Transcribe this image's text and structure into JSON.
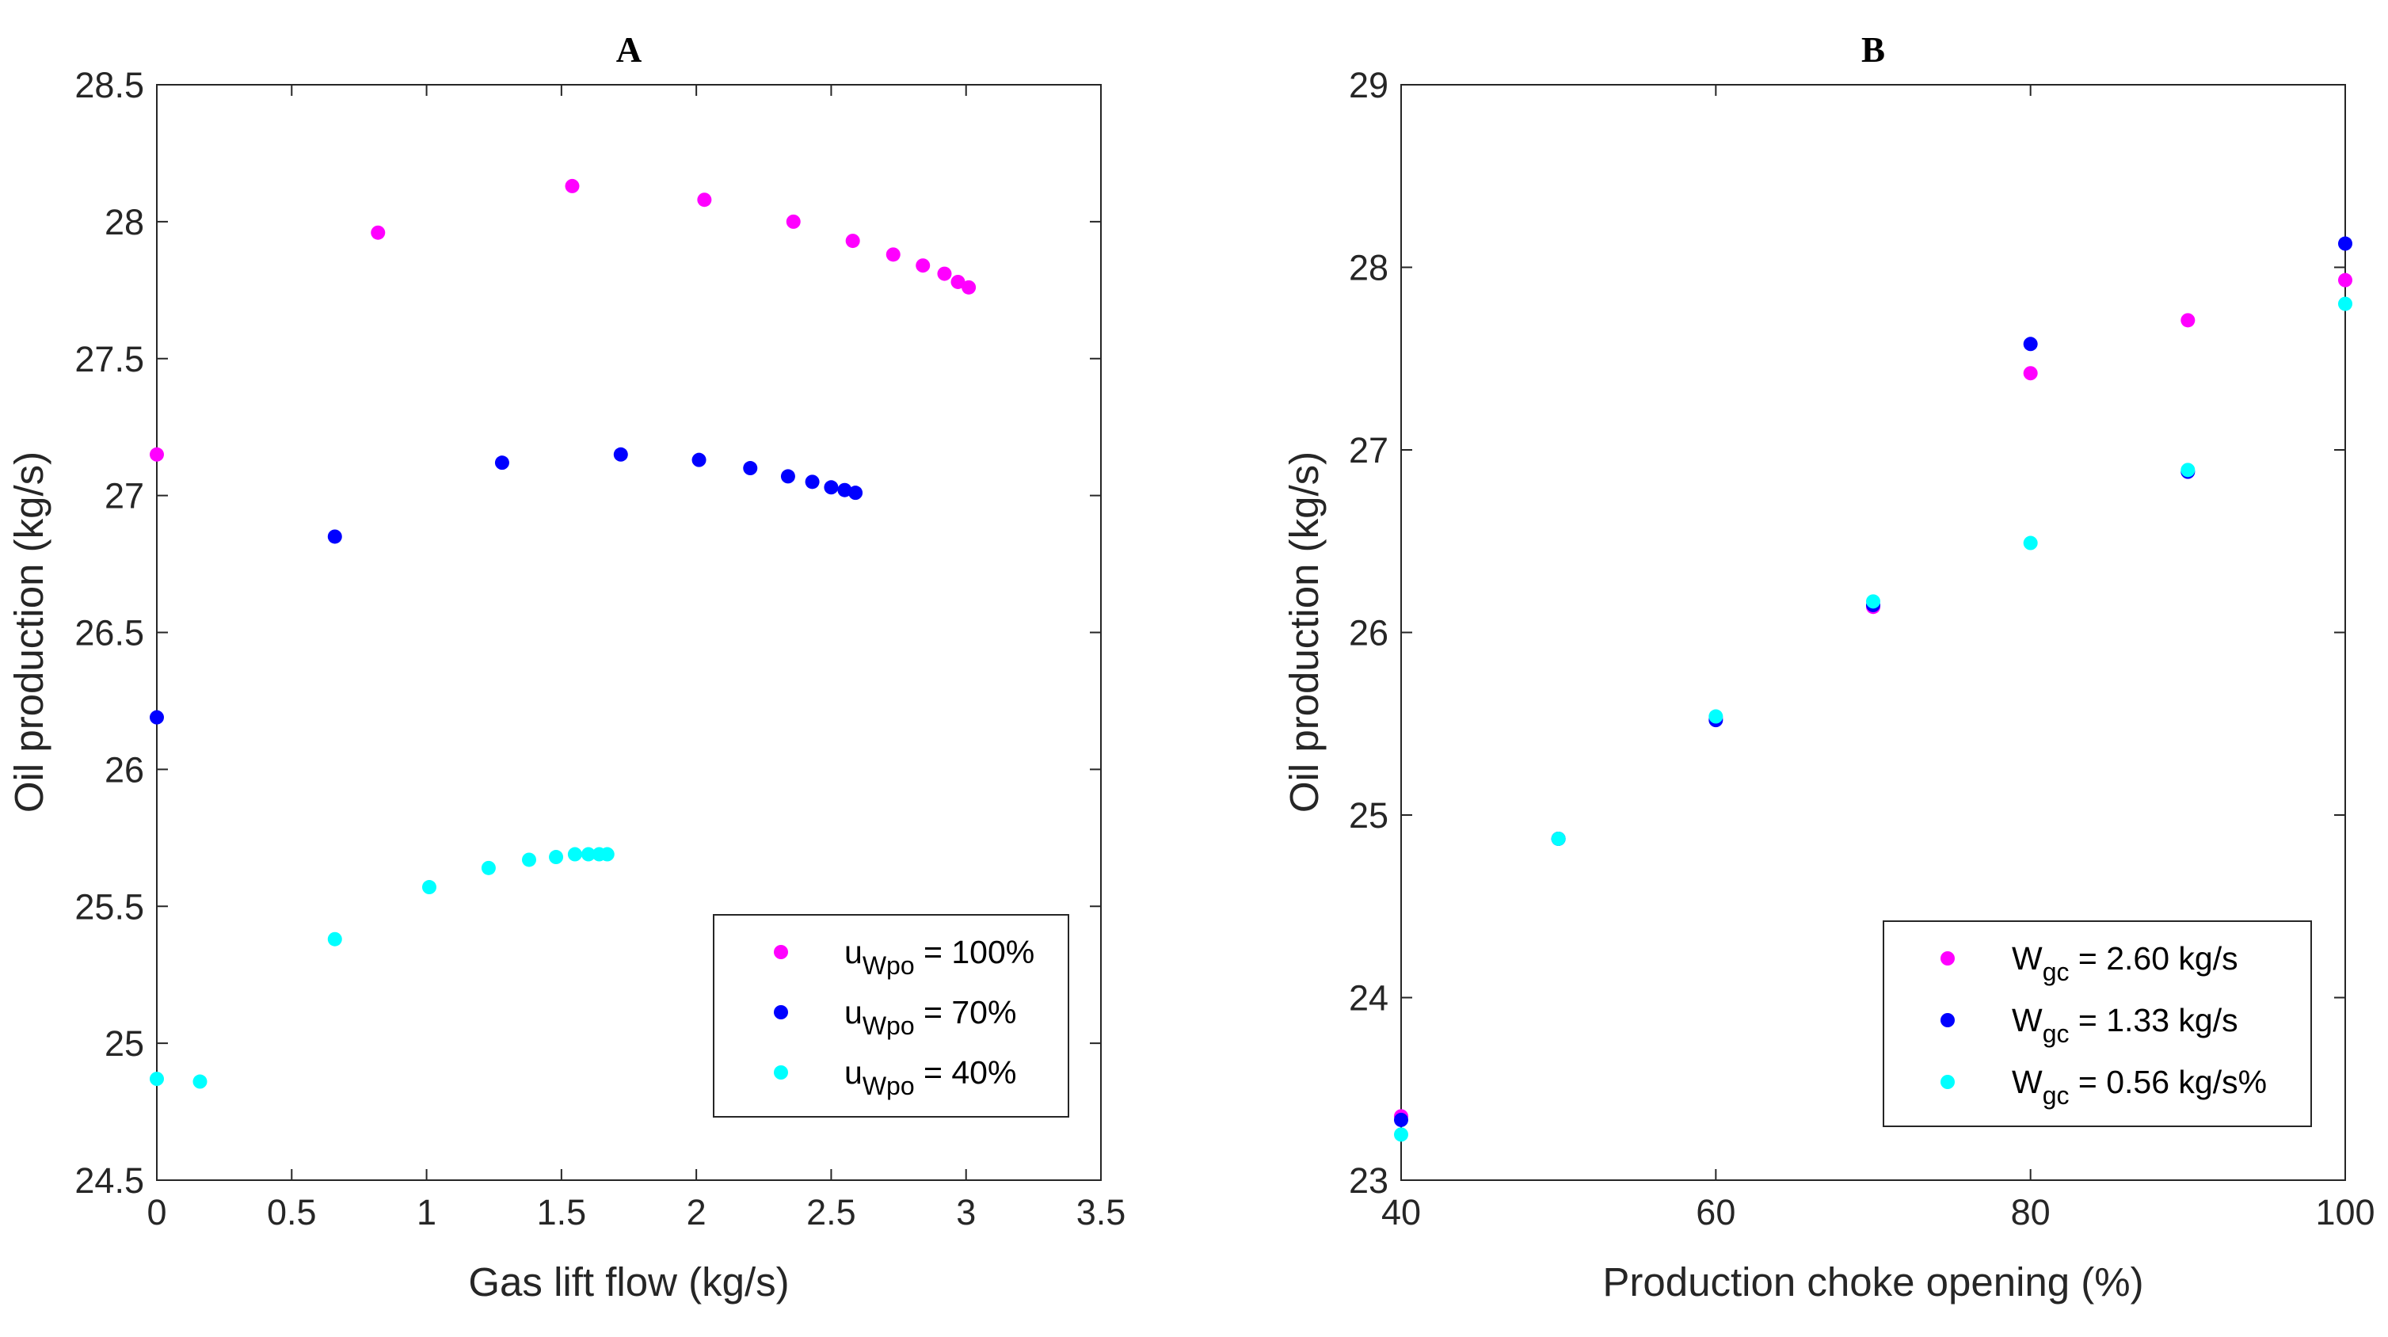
{
  "chart_data": [
    {
      "type": "scatter",
      "title": "A",
      "xlabel": "Gas lift flow (kg/s)",
      "ylabel": "Oil production (kg/s)",
      "xlim": [
        0,
        3.5
      ],
      "ylim": [
        24.5,
        28.5
      ],
      "xticks": [
        "0",
        "0.5",
        "1",
        "1.5",
        "2",
        "2.5",
        "3",
        "3.5"
      ],
      "xtick_values": [
        0,
        0.5,
        1,
        1.5,
        2,
        2.5,
        3,
        3.5
      ],
      "yticks": [
        "24.5",
        "25",
        "25.5",
        "26",
        "26.5",
        "27",
        "27.5",
        "28",
        "28.5"
      ],
      "ytick_values": [
        24.5,
        25,
        25.5,
        26,
        26.5,
        27,
        27.5,
        28,
        28.5
      ],
      "legend_position": "bottom-right",
      "series": [
        {
          "name": "u_Wpo = 100%",
          "legend_main": "u",
          "legend_sub": "Wpo",
          "legend_rest": " = 100%",
          "color": "#ff00ff",
          "x": [
            0,
            0.82,
            1.54,
            2.03,
            2.36,
            2.58,
            2.73,
            2.84,
            2.92,
            2.97,
            3.01
          ],
          "y": [
            27.15,
            27.96,
            28.13,
            28.08,
            28.0,
            27.93,
            27.88,
            27.84,
            27.81,
            27.78,
            27.76
          ]
        },
        {
          "name": "u_Wpo = 70%",
          "legend_main": "u",
          "legend_sub": "Wpo",
          "legend_rest": " = 70%",
          "color": "#0000ff",
          "x": [
            0,
            0.66,
            1.28,
            1.72,
            2.01,
            2.2,
            2.34,
            2.43,
            2.5,
            2.55,
            2.59
          ],
          "y": [
            26.19,
            26.85,
            27.12,
            27.15,
            27.13,
            27.1,
            27.07,
            27.05,
            27.03,
            27.02,
            27.01
          ]
        },
        {
          "name": "u_Wpo = 40%",
          "legend_main": "u",
          "legend_sub": "Wpo",
          "legend_rest": " = 40%",
          "color": "#00ffff",
          "x": [
            0,
            0.16,
            0.66,
            1.01,
            1.23,
            1.38,
            1.48,
            1.55,
            1.6,
            1.64,
            1.67
          ],
          "y": [
            24.87,
            24.86,
            25.38,
            25.57,
            25.64,
            25.67,
            25.68,
            25.69,
            25.69,
            25.69,
            25.69
          ]
        }
      ]
    },
    {
      "type": "scatter",
      "title": "B",
      "xlabel": "Production choke opening (%)",
      "ylabel": "Oil production (kg/s)",
      "xlim": [
        40,
        100
      ],
      "ylim": [
        23,
        29
      ],
      "xticks": [
        "40",
        "60",
        "80",
        "100"
      ],
      "xtick_values": [
        40,
        60,
        80,
        100
      ],
      "yticks": [
        "23",
        "24",
        "25",
        "26",
        "27",
        "28",
        "29"
      ],
      "ytick_values": [
        23,
        24,
        25,
        26,
        27,
        28,
        29
      ],
      "legend_position": "bottom-right",
      "series": [
        {
          "name": "W_gc = 2.60 kg/s",
          "legend_main": "W",
          "legend_sub": "gc",
          "legend_rest": " = 2.60 kg/s",
          "color": "#ff00ff",
          "x": [
            40,
            50,
            60,
            70,
            80,
            90,
            100
          ],
          "y": [
            23.35,
            24.87,
            25.53,
            26.14,
            27.42,
            27.71,
            27.93
          ]
        },
        {
          "name": "W_gc = 1.33 kg/s",
          "legend_main": "W",
          "legend_sub": "gc",
          "legend_rest": " = 1.33 kg/s",
          "color": "#0000ff",
          "x": [
            40,
            50,
            60,
            70,
            80,
            90,
            100
          ],
          "y": [
            23.33,
            24.87,
            25.52,
            26.15,
            27.58,
            26.88,
            28.13
          ]
        },
        {
          "name": "W_gc = 0.56 kg/s%",
          "legend_main": "W",
          "legend_sub": "gc",
          "legend_rest": " = 0.56 kg/s%",
          "color": "#00ffff",
          "x": [
            40,
            50,
            60,
            70,
            80,
            90,
            100
          ],
          "y": [
            23.25,
            24.87,
            25.54,
            26.17,
            26.49,
            26.89,
            27.8
          ]
        }
      ]
    }
  ]
}
